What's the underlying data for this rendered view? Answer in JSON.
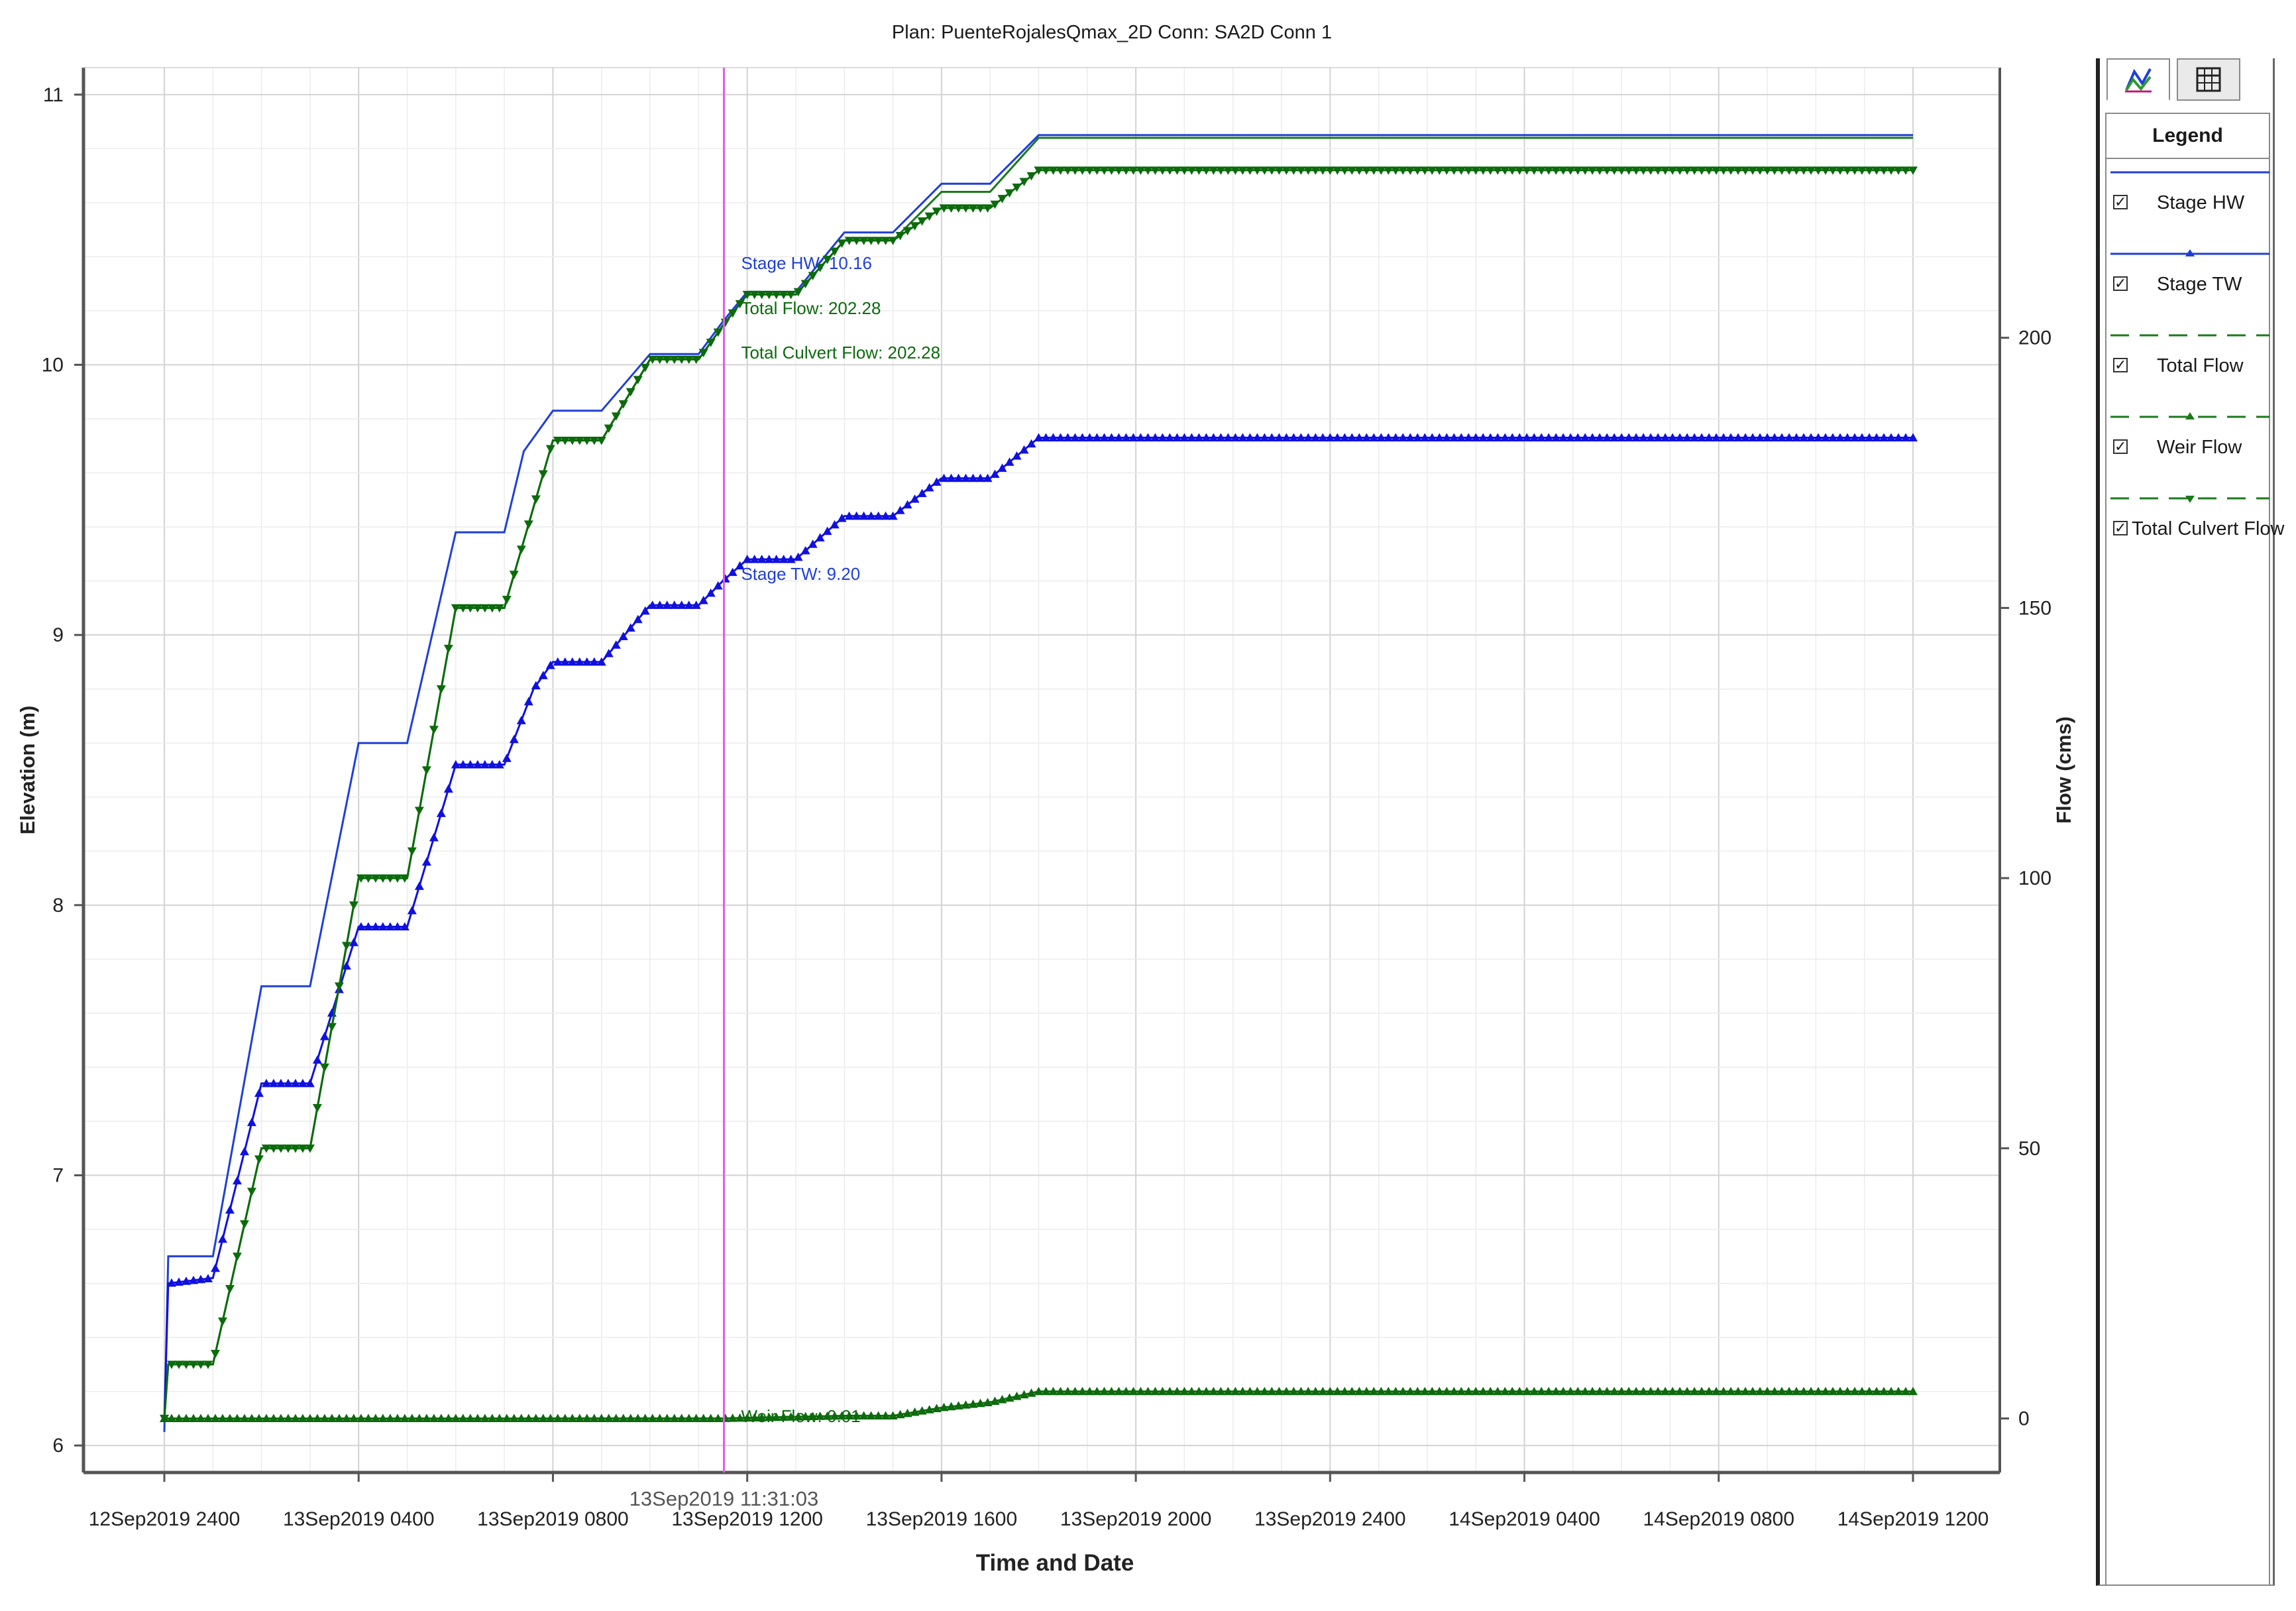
{
  "chart_data": {
    "type": "line",
    "title": "Plan: PuenteRojalesQmax_2D     Conn: SA2D Conn 1",
    "xlabel": "Time and Date",
    "ylabel": "Elevation (m)",
    "y2label": "Flow (cms)",
    "x_start": "12Sep2019 2400",
    "x_end": "14Sep2019 1200",
    "x_range_hours": [
      0,
      36
    ],
    "x_tick_hours": [
      0,
      4,
      8,
      12,
      16,
      20,
      24,
      28,
      32,
      36
    ],
    "x_tick_labels": [
      "12Sep2019 2400",
      "13Sep2019 0400",
      "13Sep2019 0800",
      "13Sep2019 1200",
      "13Sep2019 1600",
      "13Sep2019 2000",
      "13Sep2019 2400",
      "14Sep2019 0400",
      "14Sep2019 0800",
      "14Sep2019 1200"
    ],
    "ylim": [
      5.9,
      11.1
    ],
    "y_ticks": [
      6,
      7,
      8,
      9,
      10,
      11
    ],
    "y2lim": [
      -10,
      250
    ],
    "y2_ticks": [
      0,
      50,
      100,
      150,
      200
    ],
    "grid": true,
    "series": [
      {
        "name": "Stage HW",
        "axis": "left",
        "color": "#1f3fd8",
        "marker": "none",
        "points": [
          [
            0,
            6.05
          ],
          [
            0.08,
            6.7
          ],
          [
            1,
            6.7
          ],
          [
            2,
            7.7
          ],
          [
            3,
            7.7
          ],
          [
            4,
            8.6
          ],
          [
            5,
            8.6
          ],
          [
            6,
            9.38
          ],
          [
            7,
            9.38
          ],
          [
            7.4,
            9.68
          ],
          [
            8,
            9.83
          ],
          [
            9,
            9.83
          ],
          [
            10,
            10.04
          ],
          [
            11,
            10.04
          ],
          [
            11.5,
            10.16
          ],
          [
            12,
            10.27
          ],
          [
            13,
            10.27
          ],
          [
            14,
            10.49
          ],
          [
            15,
            10.49
          ],
          [
            16,
            10.67
          ],
          [
            17,
            10.67
          ],
          [
            18,
            10.85
          ],
          [
            36,
            10.85
          ]
        ]
      },
      {
        "name": "Stage TW",
        "axis": "left",
        "color": "#1010e0",
        "marker": "triangle-up",
        "points": [
          [
            0,
            6.1
          ],
          [
            0.08,
            6.6
          ],
          [
            1,
            6.62
          ],
          [
            2,
            7.34
          ],
          [
            3,
            7.34
          ],
          [
            4,
            7.92
          ],
          [
            5,
            7.92
          ],
          [
            6,
            8.52
          ],
          [
            7,
            8.52
          ],
          [
            7.6,
            8.8
          ],
          [
            8,
            8.9
          ],
          [
            9,
            8.9
          ],
          [
            10,
            9.11
          ],
          [
            11,
            9.11
          ],
          [
            11.5,
            9.2
          ],
          [
            12,
            9.28
          ],
          [
            13,
            9.28
          ],
          [
            14,
            9.44
          ],
          [
            15,
            9.44
          ],
          [
            16,
            9.58
          ],
          [
            17,
            9.58
          ],
          [
            18,
            9.73
          ],
          [
            36,
            9.73
          ]
        ]
      },
      {
        "name": "Total Flow",
        "axis": "right",
        "color": "#1a7a1a",
        "marker": "none",
        "points": [
          [
            0,
            0
          ],
          [
            0.08,
            10
          ],
          [
            1,
            10
          ],
          [
            2,
            50
          ],
          [
            3,
            50
          ],
          [
            4,
            100
          ],
          [
            5,
            100
          ],
          [
            6,
            150
          ],
          [
            7,
            150
          ],
          [
            8,
            181
          ],
          [
            9,
            181
          ],
          [
            10,
            196
          ],
          [
            11,
            196
          ],
          [
            11.5,
            202.28
          ],
          [
            12,
            208
          ],
          [
            13,
            208
          ],
          [
            14,
            218
          ],
          [
            15,
            218
          ],
          [
            16,
            227
          ],
          [
            17,
            227
          ],
          [
            18,
            237
          ],
          [
            36,
            237
          ]
        ]
      },
      {
        "name": "Weir Flow",
        "axis": "right",
        "color": "#0d6b0d",
        "marker": "triangle-up",
        "points": [
          [
            0,
            0
          ],
          [
            11.5,
            0.01
          ],
          [
            14,
            0.5
          ],
          [
            15,
            0.5
          ],
          [
            16,
            2
          ],
          [
            17,
            3
          ],
          [
            18,
            5
          ],
          [
            36,
            5
          ]
        ]
      },
      {
        "name": "Total Culvert Flow",
        "axis": "right",
        "color": "#0b6b0b",
        "marker": "triangle-down",
        "points": [
          [
            0,
            0
          ],
          [
            0.08,
            10
          ],
          [
            1,
            10
          ],
          [
            2,
            50
          ],
          [
            3,
            50
          ],
          [
            4,
            100
          ],
          [
            5,
            100
          ],
          [
            6,
            150
          ],
          [
            7,
            150
          ],
          [
            8,
            181
          ],
          [
            9,
            181
          ],
          [
            10,
            196
          ],
          [
            11,
            196
          ],
          [
            11.5,
            202.28
          ],
          [
            12,
            208
          ],
          [
            13,
            208
          ],
          [
            14,
            218
          ],
          [
            15,
            218
          ],
          [
            16,
            224
          ],
          [
            17,
            224
          ],
          [
            18,
            231
          ],
          [
            36,
            231
          ]
        ]
      }
    ],
    "cursor": {
      "hours": 11.52,
      "time_label": "13Sep2019 11:31:03",
      "annotations": [
        {
          "text": "Stage HW: 10.16",
          "color": "#1f3fd8"
        },
        {
          "text": "Total Flow: 202.28",
          "color": "#0d6b0d"
        },
        {
          "text": "Total Culvert Flow: 202.28",
          "color": "#0d6b0d"
        },
        {
          "text": "Stage TW: 9.20",
          "color": "#1f3fd8"
        },
        {
          "text": "Weir Flow: 0.01",
          "color": "#0d6b0d"
        }
      ]
    }
  },
  "legend": {
    "title": "Legend",
    "items": [
      {
        "label": "Stage HW",
        "checked": true,
        "color": "#1f3fd8",
        "style": "solid",
        "marker": "none"
      },
      {
        "label": "Stage TW",
        "checked": true,
        "color": "#1f3fd8",
        "style": "solid",
        "marker": "triangle-up"
      },
      {
        "label": "Total Flow",
        "checked": true,
        "color": "#1a7a1a",
        "style": "dashed",
        "marker": "none"
      },
      {
        "label": "Weir Flow",
        "checked": true,
        "color": "#1a7a1a",
        "style": "dashed",
        "marker": "triangle-up"
      },
      {
        "label": "Total Culvert Flow",
        "checked": true,
        "color": "#1a7a1a",
        "style": "dashed",
        "marker": "triangle-down"
      }
    ]
  },
  "tabs": [
    {
      "icon": "chart-icon",
      "active": true
    },
    {
      "icon": "table-icon",
      "active": false
    }
  ]
}
